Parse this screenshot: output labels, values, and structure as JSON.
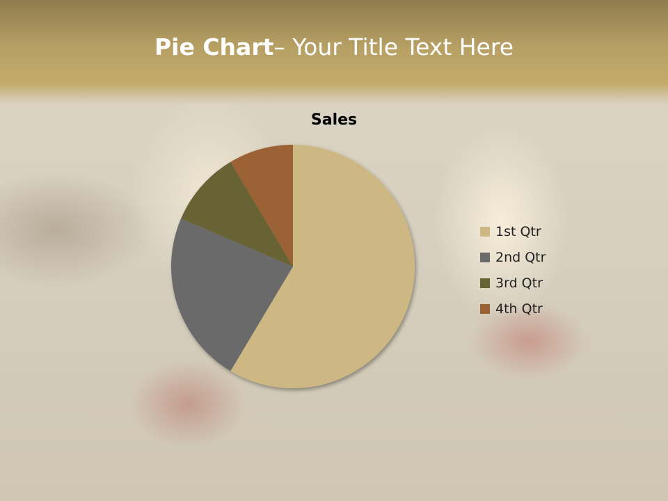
{
  "slide": {
    "title_bold": "Pie Chart",
    "title_rest": "– Your Title Text Here"
  },
  "chart_data": {
    "type": "pie",
    "title": "Sales",
    "categories": [
      "1st Qtr",
      "2nd Qtr",
      "3rd Qtr",
      "4th Qtr"
    ],
    "values": [
      8.2,
      3.2,
      1.4,
      1.2
    ],
    "colors": [
      "#cdb884",
      "#6a6a6a",
      "#676434",
      "#9a6234"
    ],
    "start_angle": "top, clockwise",
    "legend": "right"
  }
}
